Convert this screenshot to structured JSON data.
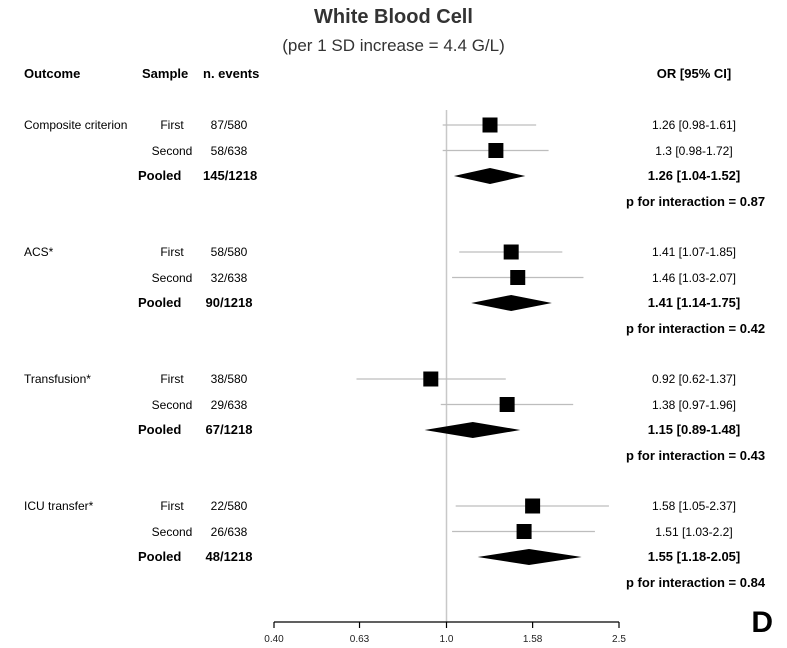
{
  "title": "White Blood Cell",
  "subtitle": "(per 1 SD increase = 4.4 G/L)",
  "headers": {
    "outcome": "Outcome",
    "sample": "Sample",
    "events": "n. events",
    "or": "OR [95% CI]"
  },
  "panel_letter": "D",
  "chart_data": {
    "type": "forest",
    "x_scale": "log",
    "xlim": [
      0.4,
      2.5
    ],
    "reference_line": 1.0,
    "x_ticks": [
      0.4,
      0.63,
      1.0,
      1.58,
      2.5
    ],
    "x_tick_labels": [
      "0.40",
      "0.63",
      "1.0",
      "1.58",
      "2.5"
    ],
    "groups": [
      {
        "outcome": "Composite criterion",
        "rows": [
          {
            "sample": "First",
            "events": "87/580",
            "or": 1.26,
            "lo": 0.98,
            "hi": 1.61,
            "label": "1.26 [0.98-1.61]"
          },
          {
            "sample": "Second",
            "events": "58/638",
            "or": 1.3,
            "lo": 0.98,
            "hi": 1.72,
            "label": "1.3 [0.98-1.72]"
          }
        ],
        "pooled": {
          "sample": "Pooled",
          "events": "145/1218",
          "or": 1.26,
          "lo": 1.04,
          "hi": 1.52,
          "label": "1.26 [1.04-1.52]"
        },
        "p_interaction": "p for interaction = 0.87"
      },
      {
        "outcome": "ACS*",
        "rows": [
          {
            "sample": "First",
            "events": "58/580",
            "or": 1.41,
            "lo": 1.07,
            "hi": 1.85,
            "label": "1.41 [1.07-1.85]"
          },
          {
            "sample": "Second",
            "events": "32/638",
            "or": 1.46,
            "lo": 1.03,
            "hi": 2.07,
            "label": "1.46 [1.03-2.07]"
          }
        ],
        "pooled": {
          "sample": "Pooled",
          "events": "90/1218",
          "or": 1.41,
          "lo": 1.14,
          "hi": 1.75,
          "label": "1.41 [1.14-1.75]"
        },
        "p_interaction": "p for interaction = 0.42"
      },
      {
        "outcome": "Transfusion*",
        "rows": [
          {
            "sample": "First",
            "events": "38/580",
            "or": 0.92,
            "lo": 0.62,
            "hi": 1.37,
            "label": "0.92 [0.62-1.37]"
          },
          {
            "sample": "Second",
            "events": "29/638",
            "or": 1.38,
            "lo": 0.97,
            "hi": 1.96,
            "label": "1.38 [0.97-1.96]"
          }
        ],
        "pooled": {
          "sample": "Pooled",
          "events": "67/1218",
          "or": 1.15,
          "lo": 0.89,
          "hi": 1.48,
          "label": "1.15 [0.89-1.48]"
        },
        "p_interaction": "p for interaction = 0.43"
      },
      {
        "outcome": "ICU transfer*",
        "rows": [
          {
            "sample": "First",
            "events": "22/580",
            "or": 1.58,
            "lo": 1.05,
            "hi": 2.37,
            "label": "1.58 [1.05-2.37]"
          },
          {
            "sample": "Second",
            "events": "26/638",
            "or": 1.51,
            "lo": 1.03,
            "hi": 2.2,
            "label": "1.51 [1.03-2.2]"
          }
        ],
        "pooled": {
          "sample": "Pooled",
          "events": "48/1218",
          "or": 1.55,
          "lo": 1.18,
          "hi": 2.05,
          "label": "1.55 [1.18-2.05]"
        },
        "p_interaction": "p for interaction = 0.84"
      }
    ]
  }
}
